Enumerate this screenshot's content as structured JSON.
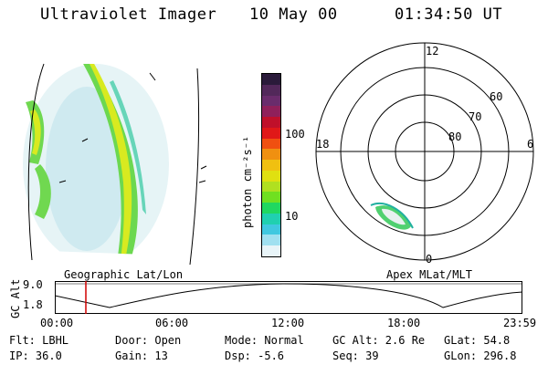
{
  "header": {
    "title": "Ultraviolet Imager",
    "date": "10 May 00",
    "time": "01:34:50 UT"
  },
  "colorbar": {
    "unit_label": "photon cm⁻²s⁻¹",
    "tick_100": "100",
    "tick_10": "10",
    "colors": [
      "#2a1a3a",
      "#52285a",
      "#6a2c6c",
      "#90205a",
      "#c0102a",
      "#e01818",
      "#f05010",
      "#f09010",
      "#f0c010",
      "#e0e010",
      "#b0e020",
      "#70e020",
      "#20d860",
      "#20d0b0",
      "#40c8e0",
      "#a0e0f0",
      "#e8f4f8"
    ]
  },
  "polar": {
    "labels": {
      "top": "12",
      "bottom": "0",
      "left": "18",
      "right": "6"
    },
    "lat_labels": [
      "60",
      "70",
      "80"
    ]
  },
  "panel_titles": {
    "geo": "Geographic Lat/Lon",
    "apex": "Apex MLat/MLT"
  },
  "altitude_plot": {
    "ylabel": "GC Alt",
    "ymax": "9.0",
    "ymin": "1.8",
    "time_ticks": [
      "00:00",
      "06:00",
      "12:00",
      "18:00",
      "23:59"
    ],
    "marker_color": "#d00000"
  },
  "footer": {
    "row1": [
      "Flt: LBHL",
      "Door: Open",
      "Mode: Normal",
      "GC Alt: 2.6 Re",
      "GLat:  54.8"
    ],
    "row2": [
      "IP: 36.0",
      "Gain: 13",
      "Dsp:    -5.6",
      "Seq: 39",
      "GLon: 296.8"
    ]
  }
}
